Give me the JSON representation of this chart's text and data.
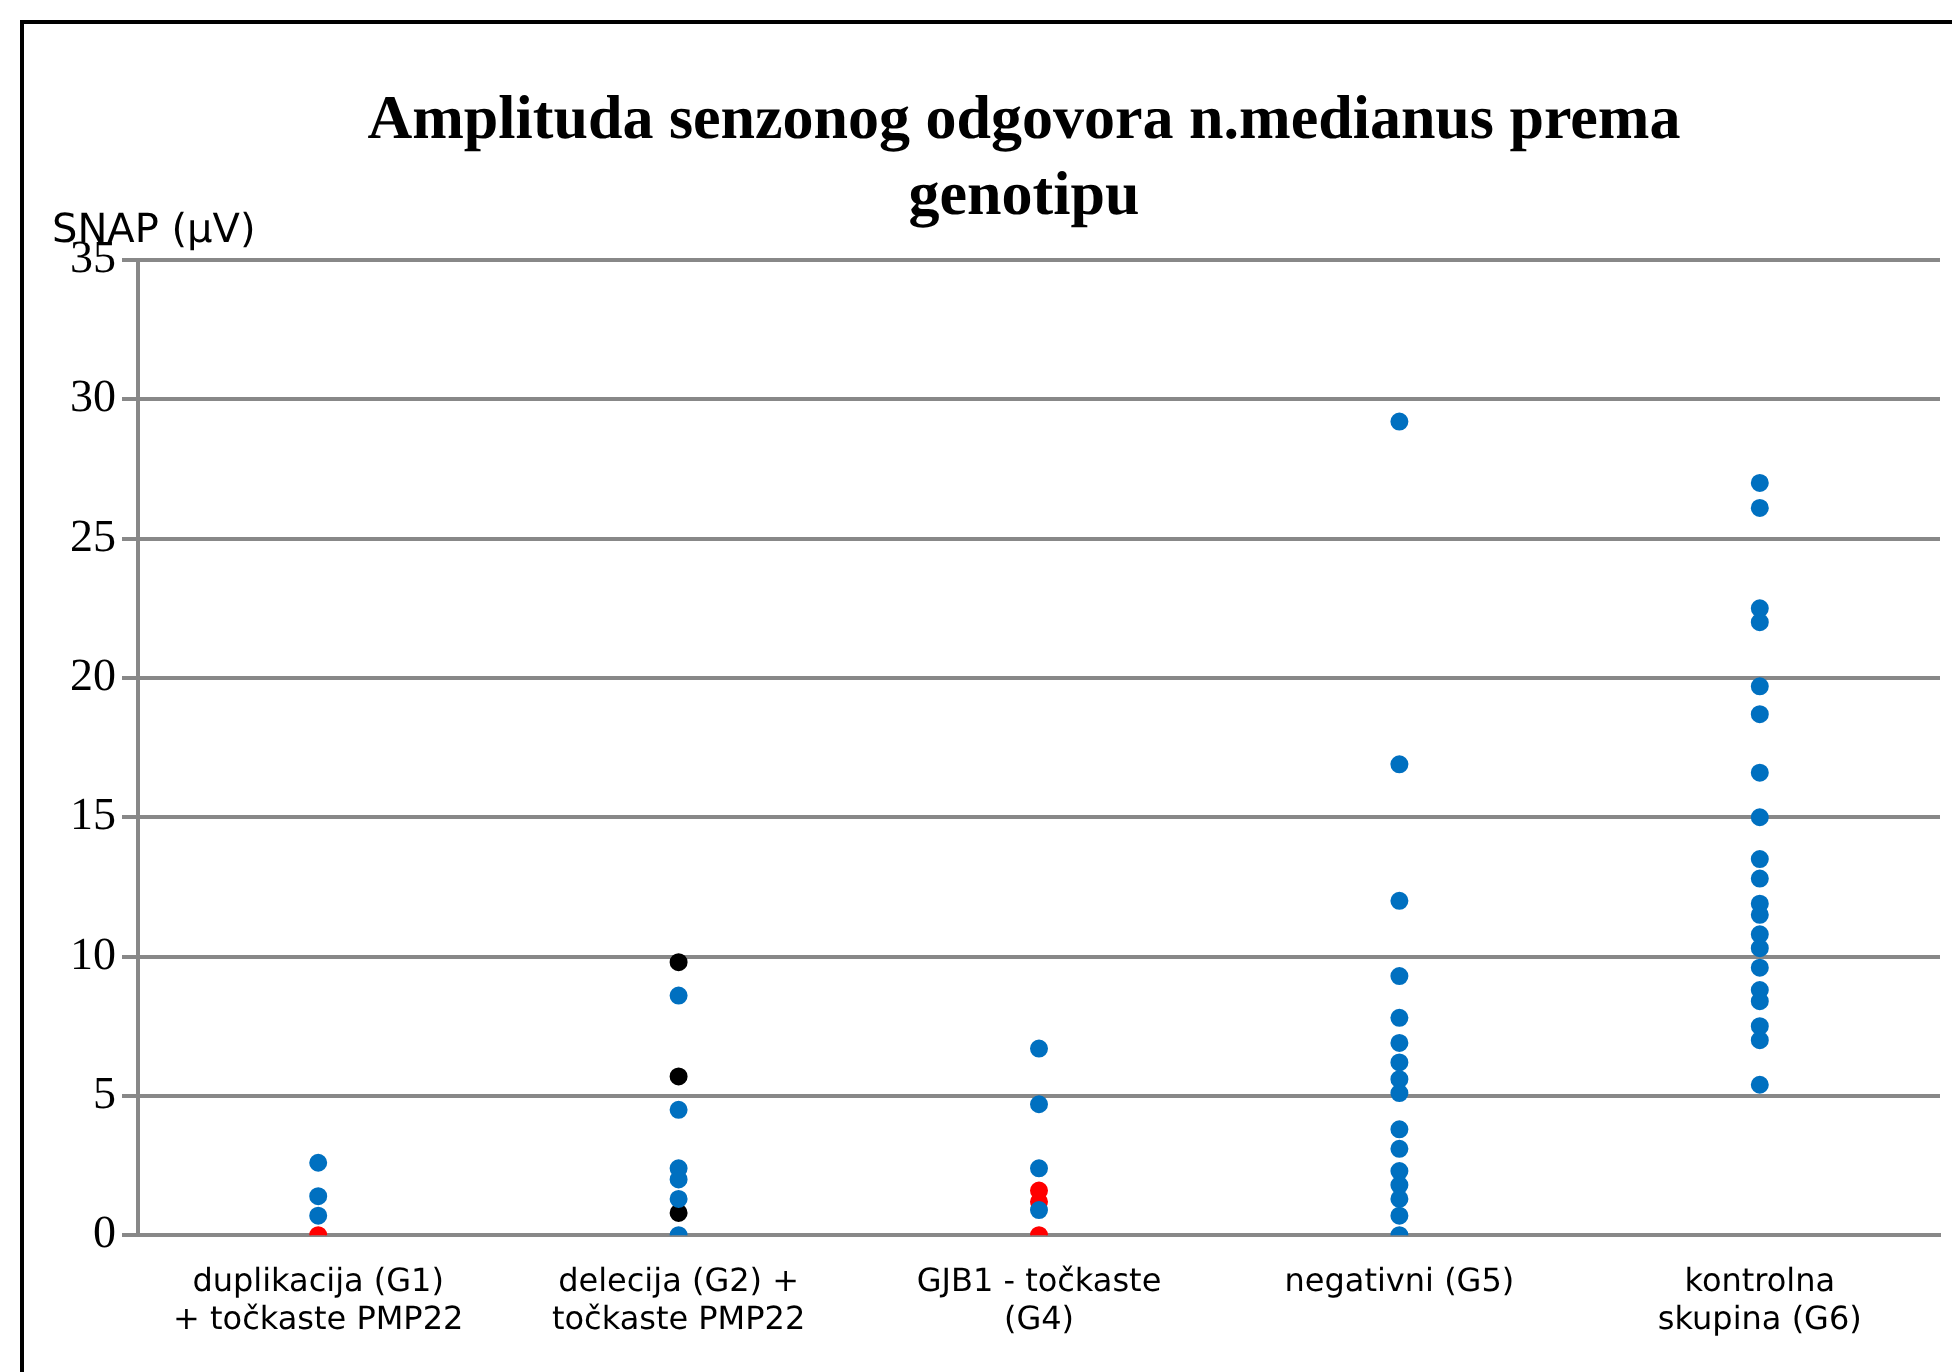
{
  "chart_data": {
    "type": "scatter",
    "title": "Amplituda senzonog odgovora n.medianus prema genotipu",
    "ylabel": "SNAP (µV)",
    "categories": [
      "duplikacija (G1) + točkaste PMP22",
      "delecija (G2) + točkaste PMP22",
      "GJB1 - točkaste (G4)",
      "negativni (G5)",
      "kontrolna skupina (G6)"
    ],
    "ylim": [
      0,
      35
    ],
    "yticks": [
      0,
      5,
      10,
      15,
      20,
      25,
      30,
      35
    ],
    "grid": "y",
    "legend": false,
    "marker": "circle",
    "series": [
      {
        "color": "#0070c0",
        "x": [
          "duplikacija (G1) + točkaste PMP22",
          "duplikacija (G1) + točkaste PMP22",
          "duplikacija (G1) + točkaste PMP22",
          "delecija (G2) + točkaste PMP22",
          "delecija (G2) + točkaste PMP22",
          "delecija (G2) + točkaste PMP22",
          "delecija (G2) + točkaste PMP22",
          "delecija (G2) + točkaste PMP22",
          "delecija (G2) + točkaste PMP22",
          "GJB1 - točkaste (G4)",
          "GJB1 - točkaste (G4)",
          "GJB1 - točkaste (G4)",
          "GJB1 - točkaste (G4)",
          "negativni (G5)",
          "negativni (G5)",
          "negativni (G5)",
          "negativni (G5)",
          "negativni (G5)",
          "negativni (G5)",
          "negativni (G5)",
          "negativni (G5)",
          "negativni (G5)",
          "negativni (G5)",
          "negativni (G5)",
          "negativni (G5)",
          "negativni (G5)",
          "negativni (G5)",
          "negativni (G5)",
          "negativni (G5)",
          "kontrolna skupina (G6)",
          "kontrolna skupina (G6)",
          "kontrolna skupina (G6)",
          "kontrolna skupina (G6)",
          "kontrolna skupina (G6)",
          "kontrolna skupina (G6)",
          "kontrolna skupina (G6)",
          "kontrolna skupina (G6)",
          "kontrolna skupina (G6)",
          "kontrolna skupina (G6)",
          "kontrolna skupina (G6)",
          "kontrolna skupina (G6)",
          "kontrolna skupina (G6)",
          "kontrolna skupina (G6)",
          "kontrolna skupina (G6)",
          "kontrolna skupina (G6)",
          "kontrolna skupina (G6)",
          "kontrolna skupina (G6)",
          "kontrolna skupina (G6)",
          "kontrolna skupina (G6)"
        ],
        "values": [
          2.6,
          1.4,
          0.7,
          8.6,
          4.5,
          2.4,
          2.0,
          1.3,
          0,
          6.7,
          4.7,
          2.4,
          0.9,
          29.2,
          16.9,
          12.0,
          9.3,
          7.8,
          6.9,
          6.2,
          5.6,
          5.1,
          3.8,
          3.1,
          2.3,
          1.8,
          1.3,
          0.7,
          0,
          27.0,
          26.1,
          22.5,
          22.0,
          19.7,
          18.7,
          16.6,
          15.0,
          13.5,
          12.8,
          11.9,
          11.5,
          10.8,
          10.3,
          9.6,
          8.8,
          8.4,
          7.5,
          7.0,
          5.4
        ]
      },
      {
        "color": "#ff0000",
        "x": [
          "duplikacija (G1) + točkaste PMP22",
          "GJB1 - točkaste (G4)",
          "GJB1 - točkaste (G4)",
          "GJB1 - točkaste (G4)"
        ],
        "values": [
          0,
          1.6,
          1.2,
          0
        ]
      },
      {
        "color": "#000000",
        "x": [
          "delecija (G2) + točkaste PMP22",
          "delecija (G2) + točkaste PMP22",
          "delecija (G2) + točkaste PMP22"
        ],
        "values": [
          9.8,
          5.7,
          0.8
        ]
      }
    ]
  }
}
